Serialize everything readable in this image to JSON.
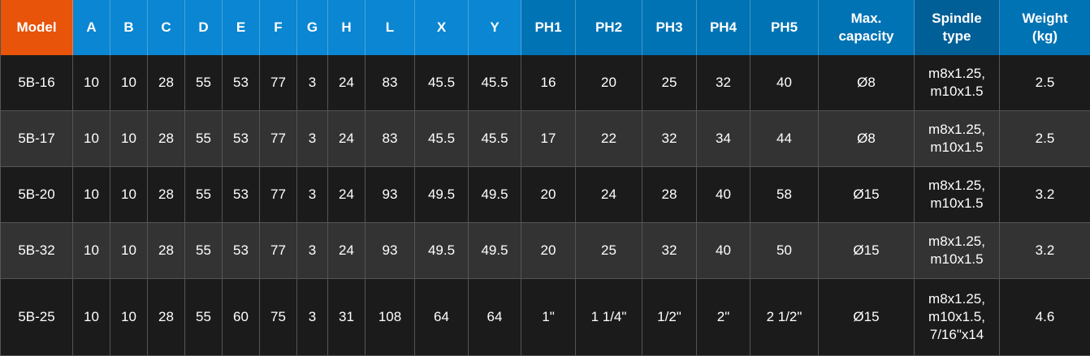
{
  "colors": {
    "model_header": "#e8540a",
    "dim_header": "#0a86d2",
    "ph_header": "#0073b5",
    "spindle_header": "#005f97",
    "row_dark": "#1b1b1b",
    "row_light": "#333333"
  },
  "headers": [
    "Model",
    "A",
    "B",
    "C",
    "D",
    "E",
    "F",
    "G",
    "H",
    "L",
    "X",
    "Y",
    "PH1",
    "PH2",
    "PH3",
    "PH4",
    "PH5",
    "Max. capacity",
    "Spindle type",
    "Weight (kg)"
  ],
  "rows": [
    [
      "5B-16",
      "10",
      "10",
      "28",
      "55",
      "53",
      "77",
      "3",
      "24",
      "83",
      "45.5",
      "45.5",
      "16",
      "20",
      "25",
      "32",
      "40",
      "Ø8",
      "m8x1.25, m10x1.5",
      "2.5"
    ],
    [
      "5B-17",
      "10",
      "10",
      "28",
      "55",
      "53",
      "77",
      "3",
      "24",
      "83",
      "45.5",
      "45.5",
      "17",
      "22",
      "32",
      "34",
      "44",
      "Ø8",
      "m8x1.25, m10x1.5",
      "2.5"
    ],
    [
      "5B-20",
      "10",
      "10",
      "28",
      "55",
      "53",
      "77",
      "3",
      "24",
      "93",
      "49.5",
      "49.5",
      "20",
      "24",
      "28",
      "40",
      "58",
      "Ø15",
      "m8x1.25, m10x1.5",
      "3.2"
    ],
    [
      "5B-32",
      "10",
      "10",
      "28",
      "55",
      "53",
      "77",
      "3",
      "24",
      "93",
      "49.5",
      "49.5",
      "20",
      "25",
      "32",
      "40",
      "50",
      "Ø15",
      "m8x1.25, m10x1.5",
      "3.2"
    ],
    [
      "5B-25",
      "10",
      "10",
      "28",
      "55",
      "60",
      "75",
      "3",
      "31",
      "108",
      "64",
      "64",
      "1\"",
      "1 1/4\"",
      "1/2\"",
      "2\"",
      "2 1/2\"",
      "Ø15",
      "m8x1.25, m10x1.5, 7/16\"x14",
      "4.6"
    ]
  ]
}
